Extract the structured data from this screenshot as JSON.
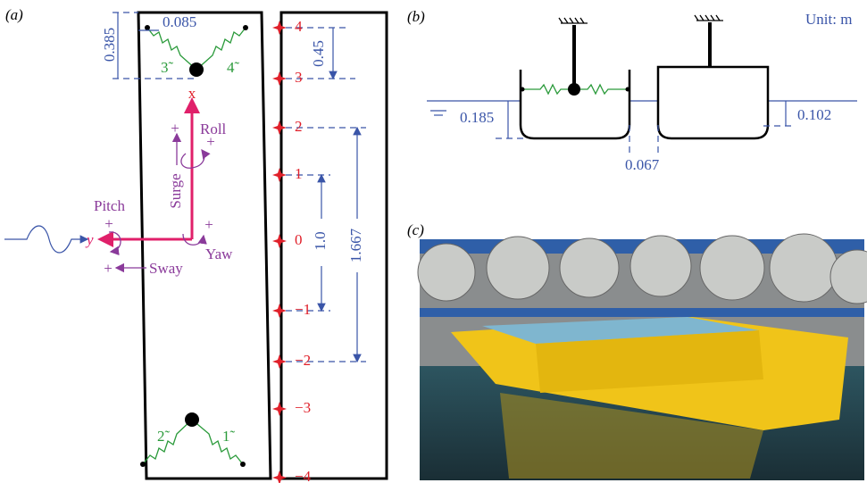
{
  "panel_a": {
    "label": "(a)",
    "dims": [
      "0.385",
      "0.085",
      "0.45",
      "1.0",
      "1.667"
    ],
    "springs": [
      "3̃",
      "4̃",
      "2̃",
      "1̃"
    ],
    "axes": {
      "x": "x",
      "y": "y"
    },
    "motions": [
      "Roll",
      "Surge",
      "Pitch",
      "Yaw",
      "Sway"
    ],
    "plus": [
      "+",
      "+",
      "+",
      "+",
      "+"
    ],
    "gauges": [
      "4",
      "3",
      "2",
      "1",
      "0",
      "−1",
      "−2",
      "−3",
      "−4"
    ]
  },
  "panel_b": {
    "label": "(b)",
    "unit": "Unit: m",
    "dims": [
      "0.185",
      "0.102",
      "0.067"
    ]
  },
  "panel_c": {
    "label": "(c)"
  }
}
